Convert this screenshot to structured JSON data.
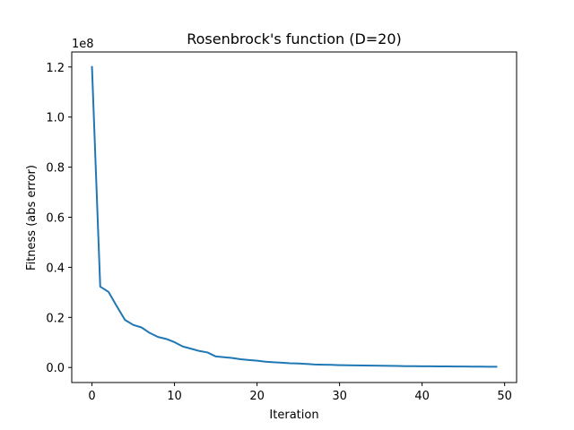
{
  "chart_data": {
    "type": "line",
    "title": "Rosenbrock's function (D=20)",
    "xlabel": "Iteration",
    "ylabel": "Fitness (abs error)",
    "y_offset_label": "1e8",
    "y_scale_factor": 100000000,
    "xlim": [
      -2.45,
      51.45
    ],
    "ylim": [
      -0.06,
      1.26
    ],
    "x_ticks": [
      0,
      10,
      20,
      30,
      40,
      50
    ],
    "y_ticks": [
      0.0,
      0.2,
      0.4,
      0.6,
      0.8,
      1.0,
      1.2
    ],
    "y_tick_labels": [
      "0.0",
      "0.2",
      "0.4",
      "0.6",
      "0.8",
      "1.0",
      "1.2"
    ],
    "grid": false,
    "series": [
      {
        "color": "#1f77b4",
        "x": [
          0,
          1,
          2,
          3,
          4,
          5,
          6,
          7,
          8,
          9,
          10,
          11,
          12,
          13,
          14,
          15,
          16,
          17,
          18,
          19,
          20,
          21,
          22,
          23,
          24,
          25,
          26,
          27,
          28,
          29,
          30,
          31,
          32,
          33,
          34,
          35,
          36,
          37,
          38,
          39,
          40,
          41,
          42,
          43,
          44,
          45,
          46,
          47,
          48,
          49
        ],
        "y": [
          1.2,
          0.323,
          0.302,
          0.245,
          0.19,
          0.17,
          0.16,
          0.138,
          0.122,
          0.114,
          0.101,
          0.084,
          0.075,
          0.066,
          0.06,
          0.044,
          0.041,
          0.038,
          0.033,
          0.03,
          0.027,
          0.023,
          0.021,
          0.019,
          0.017,
          0.016,
          0.014,
          0.012,
          0.011,
          0.0105,
          0.0095,
          0.009,
          0.0085,
          0.008,
          0.0075,
          0.007,
          0.0065,
          0.006,
          0.0055,
          0.0052,
          0.005,
          0.0047,
          0.0045,
          0.0042,
          0.004,
          0.0038,
          0.0036,
          0.0034,
          0.0032,
          0.003
        ]
      }
    ]
  }
}
